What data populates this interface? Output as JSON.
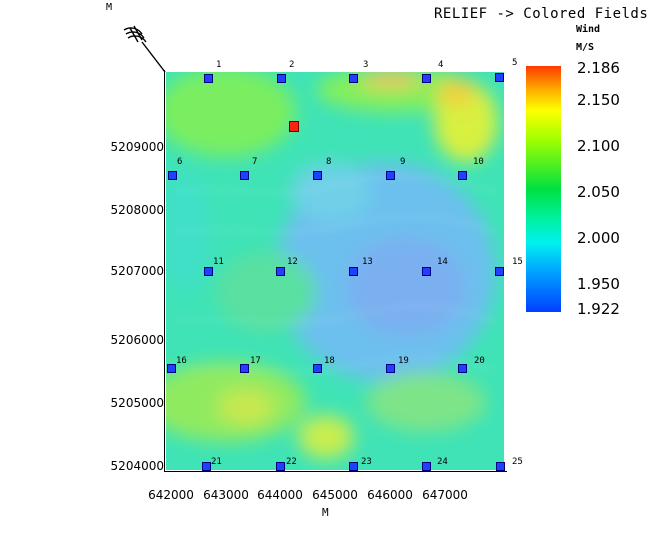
{
  "title": "RELIEF -> Colored Fields",
  "legend": {
    "label": "Wind",
    "unit": "M/S",
    "ticks": [
      "2.186",
      "2.150",
      "2.100",
      "2.050",
      "2.000",
      "1.950",
      "1.922"
    ]
  },
  "axes": {
    "x_unit": "M",
    "y_unit": "M",
    "x_ticks": [
      "642000",
      "643000",
      "644000",
      "645000",
      "646000",
      "647000"
    ],
    "y_ticks": [
      "5209000",
      "5208000",
      "5207000",
      "5206000",
      "5205000",
      "5204000"
    ]
  },
  "stations": [
    {
      "label": "1"
    },
    {
      "label": "2"
    },
    {
      "label": "3"
    },
    {
      "label": "4"
    },
    {
      "label": "5"
    },
    {
      "label": "6"
    },
    {
      "label": "7"
    },
    {
      "label": "8"
    },
    {
      "label": "9"
    },
    {
      "label": "10"
    },
    {
      "label": "11"
    },
    {
      "label": "12"
    },
    {
      "label": "13"
    },
    {
      "label": "14"
    },
    {
      "label": "15"
    },
    {
      "label": "16"
    },
    {
      "label": "17"
    },
    {
      "label": "18"
    },
    {
      "label": "19"
    },
    {
      "label": "20"
    },
    {
      "label": "21"
    },
    {
      "label": "22"
    },
    {
      "label": "23"
    },
    {
      "label": "24"
    },
    {
      "label": "25"
    }
  ],
  "colors": {
    "station": "#2040ff",
    "highlight_station": "#ff2010",
    "field_base": "#40e0b0"
  }
}
